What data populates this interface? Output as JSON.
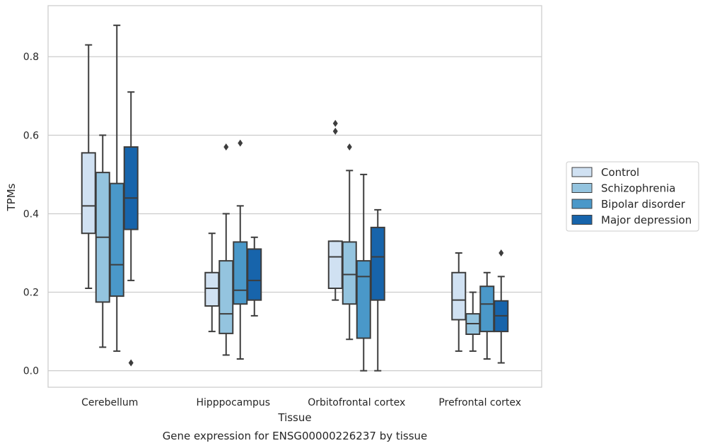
{
  "chart_data": {
    "type": "boxplot",
    "title": "Gene expression for ENSG00000226237 by tissue",
    "xlabel": "Tissue",
    "ylabel": "TPMs",
    "ylim": [
      -0.042,
      0.93
    ],
    "yticks": [
      "0.0",
      "0.2",
      "0.4",
      "0.6",
      "0.8"
    ],
    "grid": "horizontal",
    "legend_placement": "right",
    "categories": [
      "Cerebellum",
      "Hipppocampus",
      "Orbitofrontal cortex",
      "Prefrontal cortex"
    ],
    "series": [
      {
        "name": "Control",
        "color": "#d0e1f2",
        "boxes": [
          {
            "whisker_low": 0.21,
            "q1": 0.35,
            "median": 0.42,
            "q3": 0.555,
            "whisker_high": 0.83,
            "outliers": []
          },
          {
            "whisker_low": 0.1,
            "q1": 0.165,
            "median": 0.21,
            "q3": 0.25,
            "whisker_high": 0.35,
            "outliers": []
          },
          {
            "whisker_low": 0.18,
            "q1": 0.21,
            "median": 0.29,
            "q3": 0.33,
            "whisker_high": 0.33,
            "outliers": [
              0.61,
              0.63
            ]
          },
          {
            "whisker_low": 0.05,
            "q1": 0.13,
            "median": 0.18,
            "q3": 0.25,
            "whisker_high": 0.3,
            "outliers": []
          }
        ]
      },
      {
        "name": "Schizophrenia",
        "color": "#94c4df",
        "boxes": [
          {
            "whisker_low": 0.06,
            "q1": 0.175,
            "median": 0.34,
            "q3": 0.505,
            "whisker_high": 0.6,
            "outliers": []
          },
          {
            "whisker_low": 0.04,
            "q1": 0.095,
            "median": 0.145,
            "q3": 0.28,
            "whisker_high": 0.4,
            "outliers": [
              0.57
            ]
          },
          {
            "whisker_low": 0.08,
            "q1": 0.17,
            "median": 0.245,
            "q3": 0.328,
            "whisker_high": 0.51,
            "outliers": [
              0.57
            ]
          },
          {
            "whisker_low": 0.05,
            "q1": 0.093,
            "median": 0.12,
            "q3": 0.145,
            "whisker_high": 0.2,
            "outliers": []
          }
        ]
      },
      {
        "name": "Bipolar disorder",
        "color": "#4a98c9",
        "boxes": [
          {
            "whisker_low": 0.05,
            "q1": 0.19,
            "median": 0.27,
            "q3": 0.477,
            "whisker_high": 0.88,
            "outliers": []
          },
          {
            "whisker_low": 0.03,
            "q1": 0.17,
            "median": 0.205,
            "q3": 0.328,
            "whisker_high": 0.42,
            "outliers": [
              0.58
            ]
          },
          {
            "whisker_low": 0.0,
            "q1": 0.083,
            "median": 0.24,
            "q3": 0.28,
            "whisker_high": 0.5,
            "outliers": []
          },
          {
            "whisker_low": 0.03,
            "q1": 0.1,
            "median": 0.17,
            "q3": 0.215,
            "whisker_high": 0.25,
            "outliers": []
          }
        ]
      },
      {
        "name": "Major depression",
        "color": "#1764ab",
        "boxes": [
          {
            "whisker_low": 0.23,
            "q1": 0.36,
            "median": 0.44,
            "q3": 0.57,
            "whisker_high": 0.71,
            "outliers": [
              0.02
            ]
          },
          {
            "whisker_low": 0.14,
            "q1": 0.18,
            "median": 0.23,
            "q3": 0.31,
            "whisker_high": 0.34,
            "outliers": []
          },
          {
            "whisker_low": 0.0,
            "q1": 0.18,
            "median": 0.29,
            "q3": 0.365,
            "whisker_high": 0.41,
            "outliers": []
          },
          {
            "whisker_low": 0.02,
            "q1": 0.1,
            "median": 0.14,
            "q3": 0.178,
            "whisker_high": 0.24,
            "outliers": [
              0.3
            ]
          }
        ]
      }
    ]
  }
}
